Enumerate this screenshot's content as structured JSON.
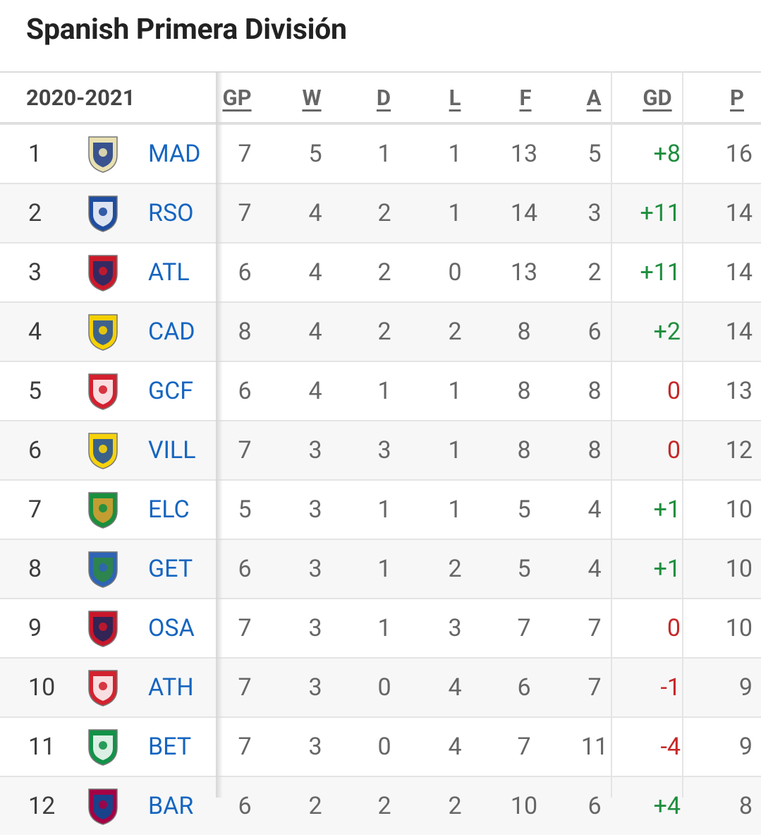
{
  "title": "Spanish Primera División",
  "header": {
    "season": "2020-2021",
    "columns": [
      "GP",
      "W",
      "D",
      "L",
      "F",
      "A",
      "GD",
      "P"
    ]
  },
  "rows": [
    {
      "pos": "1",
      "abbr": "MAD",
      "gp": "7",
      "w": "5",
      "d": "1",
      "l": "1",
      "f": "13",
      "a": "5",
      "gd": "+8",
      "p": "16",
      "crest": "real-madrid-crest-icon",
      "c1": "#e8e0b0",
      "c2": "#1b3a8a"
    },
    {
      "pos": "2",
      "abbr": "RSO",
      "gp": "7",
      "w": "4",
      "d": "2",
      "l": "1",
      "f": "14",
      "a": "3",
      "gd": "+11",
      "p": "14",
      "crest": "real-sociedad-crest-icon",
      "c1": "#1f4da0",
      "c2": "#ffffff"
    },
    {
      "pos": "3",
      "abbr": "ATL",
      "gp": "6",
      "w": "4",
      "d": "2",
      "l": "0",
      "f": "13",
      "a": "2",
      "gd": "+11",
      "p": "14",
      "crest": "atletico-crest-icon",
      "c1": "#cb1a2a",
      "c2": "#1b2d6b"
    },
    {
      "pos": "4",
      "abbr": "CAD",
      "gp": "8",
      "w": "4",
      "d": "2",
      "l": "2",
      "f": "8",
      "a": "6",
      "gd": "+2",
      "p": "14",
      "crest": "cadiz-crest-icon",
      "c1": "#f5d000",
      "c2": "#1d4fa3"
    },
    {
      "pos": "5",
      "abbr": "GCF",
      "gp": "6",
      "w": "4",
      "d": "1",
      "l": "1",
      "f": "8",
      "a": "8",
      "gd": "0",
      "p": "13",
      "crest": "granada-crest-icon",
      "c1": "#d4202f",
      "c2": "#ffffff"
    },
    {
      "pos": "6",
      "abbr": "VILL",
      "gp": "7",
      "w": "3",
      "d": "3",
      "l": "1",
      "f": "8",
      "a": "8",
      "gd": "0",
      "p": "12",
      "crest": "villarreal-crest-icon",
      "c1": "#f6d20b",
      "c2": "#1a4ea0"
    },
    {
      "pos": "7",
      "abbr": "ELC",
      "gp": "5",
      "w": "3",
      "d": "1",
      "l": "1",
      "f": "5",
      "a": "4",
      "gd": "+1",
      "p": "10",
      "crest": "elche-crest-icon",
      "c1": "#1a8f3e",
      "c2": "#e0a030"
    },
    {
      "pos": "8",
      "abbr": "GET",
      "gp": "6",
      "w": "3",
      "d": "1",
      "l": "2",
      "f": "5",
      "a": "4",
      "gd": "+1",
      "p": "10",
      "crest": "getafe-crest-icon",
      "c1": "#2f64b5",
      "c2": "#2d8a3c"
    },
    {
      "pos": "9",
      "abbr": "OSA",
      "gp": "7",
      "w": "3",
      "d": "1",
      "l": "3",
      "f": "7",
      "a": "7",
      "gd": "0",
      "p": "10",
      "crest": "osasuna-crest-icon",
      "c1": "#c8172b",
      "c2": "#17275c"
    },
    {
      "pos": "10",
      "abbr": "ATH",
      "gp": "7",
      "w": "3",
      "d": "0",
      "l": "4",
      "f": "6",
      "a": "7",
      "gd": "-1",
      "p": "9",
      "crest": "athletic-crest-icon",
      "c1": "#d2232f",
      "c2": "#ffffff"
    },
    {
      "pos": "11",
      "abbr": "BET",
      "gp": "7",
      "w": "3",
      "d": "0",
      "l": "4",
      "f": "7",
      "a": "11",
      "gd": "-4",
      "p": "9",
      "crest": "betis-crest-icon",
      "c1": "#139249",
      "c2": "#ffffff"
    },
    {
      "pos": "12",
      "abbr": "BAR",
      "gp": "6",
      "w": "2",
      "d": "2",
      "l": "2",
      "f": "10",
      "a": "6",
      "gd": "+4",
      "p": "8",
      "crest": "barcelona-crest-icon",
      "c1": "#a50044",
      "c2": "#004d98"
    }
  ]
}
